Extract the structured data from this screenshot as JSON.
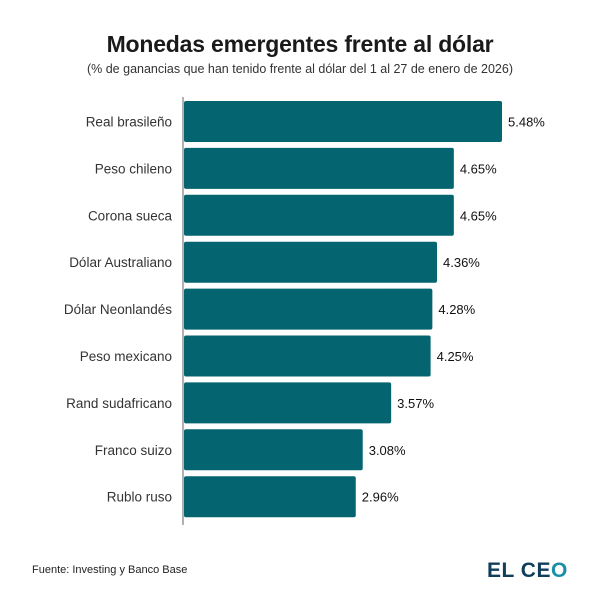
{
  "header": {
    "title": "Monedas emergentes frente al dólar",
    "subtitle": "(% de ganancias que han tenido frente al dólar del 1 al 27 de enero de 2026)"
  },
  "footer": {
    "source": "Fuente: Investing y Banco Base",
    "logo_main": "EL CE",
    "logo_accent": "O"
  },
  "colors": {
    "bar": "#04646f",
    "axis": "#666666"
  },
  "chart_data": {
    "type": "bar",
    "orientation": "horizontal",
    "title": "Monedas emergentes frente al dólar",
    "subtitle": "(% de ganancias que han tenido frente al dólar del 1 al 27 de enero de 2026)",
    "xlabel": "",
    "ylabel": "",
    "categories": [
      "Real brasileño",
      "Peso chileno",
      "Corona sueca",
      "Dólar Australiano",
      "Dólar Neonlandés",
      "Peso mexicano",
      "Rand sudafricano",
      "Franco suizo",
      "Rublo ruso"
    ],
    "values": [
      5.48,
      4.65,
      4.65,
      4.36,
      4.28,
      4.25,
      3.57,
      3.08,
      2.96
    ],
    "value_labels": [
      "5.48%",
      "4.65%",
      "4.65%",
      "4.36%",
      "4.28%",
      "4.25%",
      "3.57%",
      "3.08%",
      "2.96%"
    ],
    "xlim": [
      0,
      5.48
    ],
    "grid": false,
    "legend": "none"
  }
}
